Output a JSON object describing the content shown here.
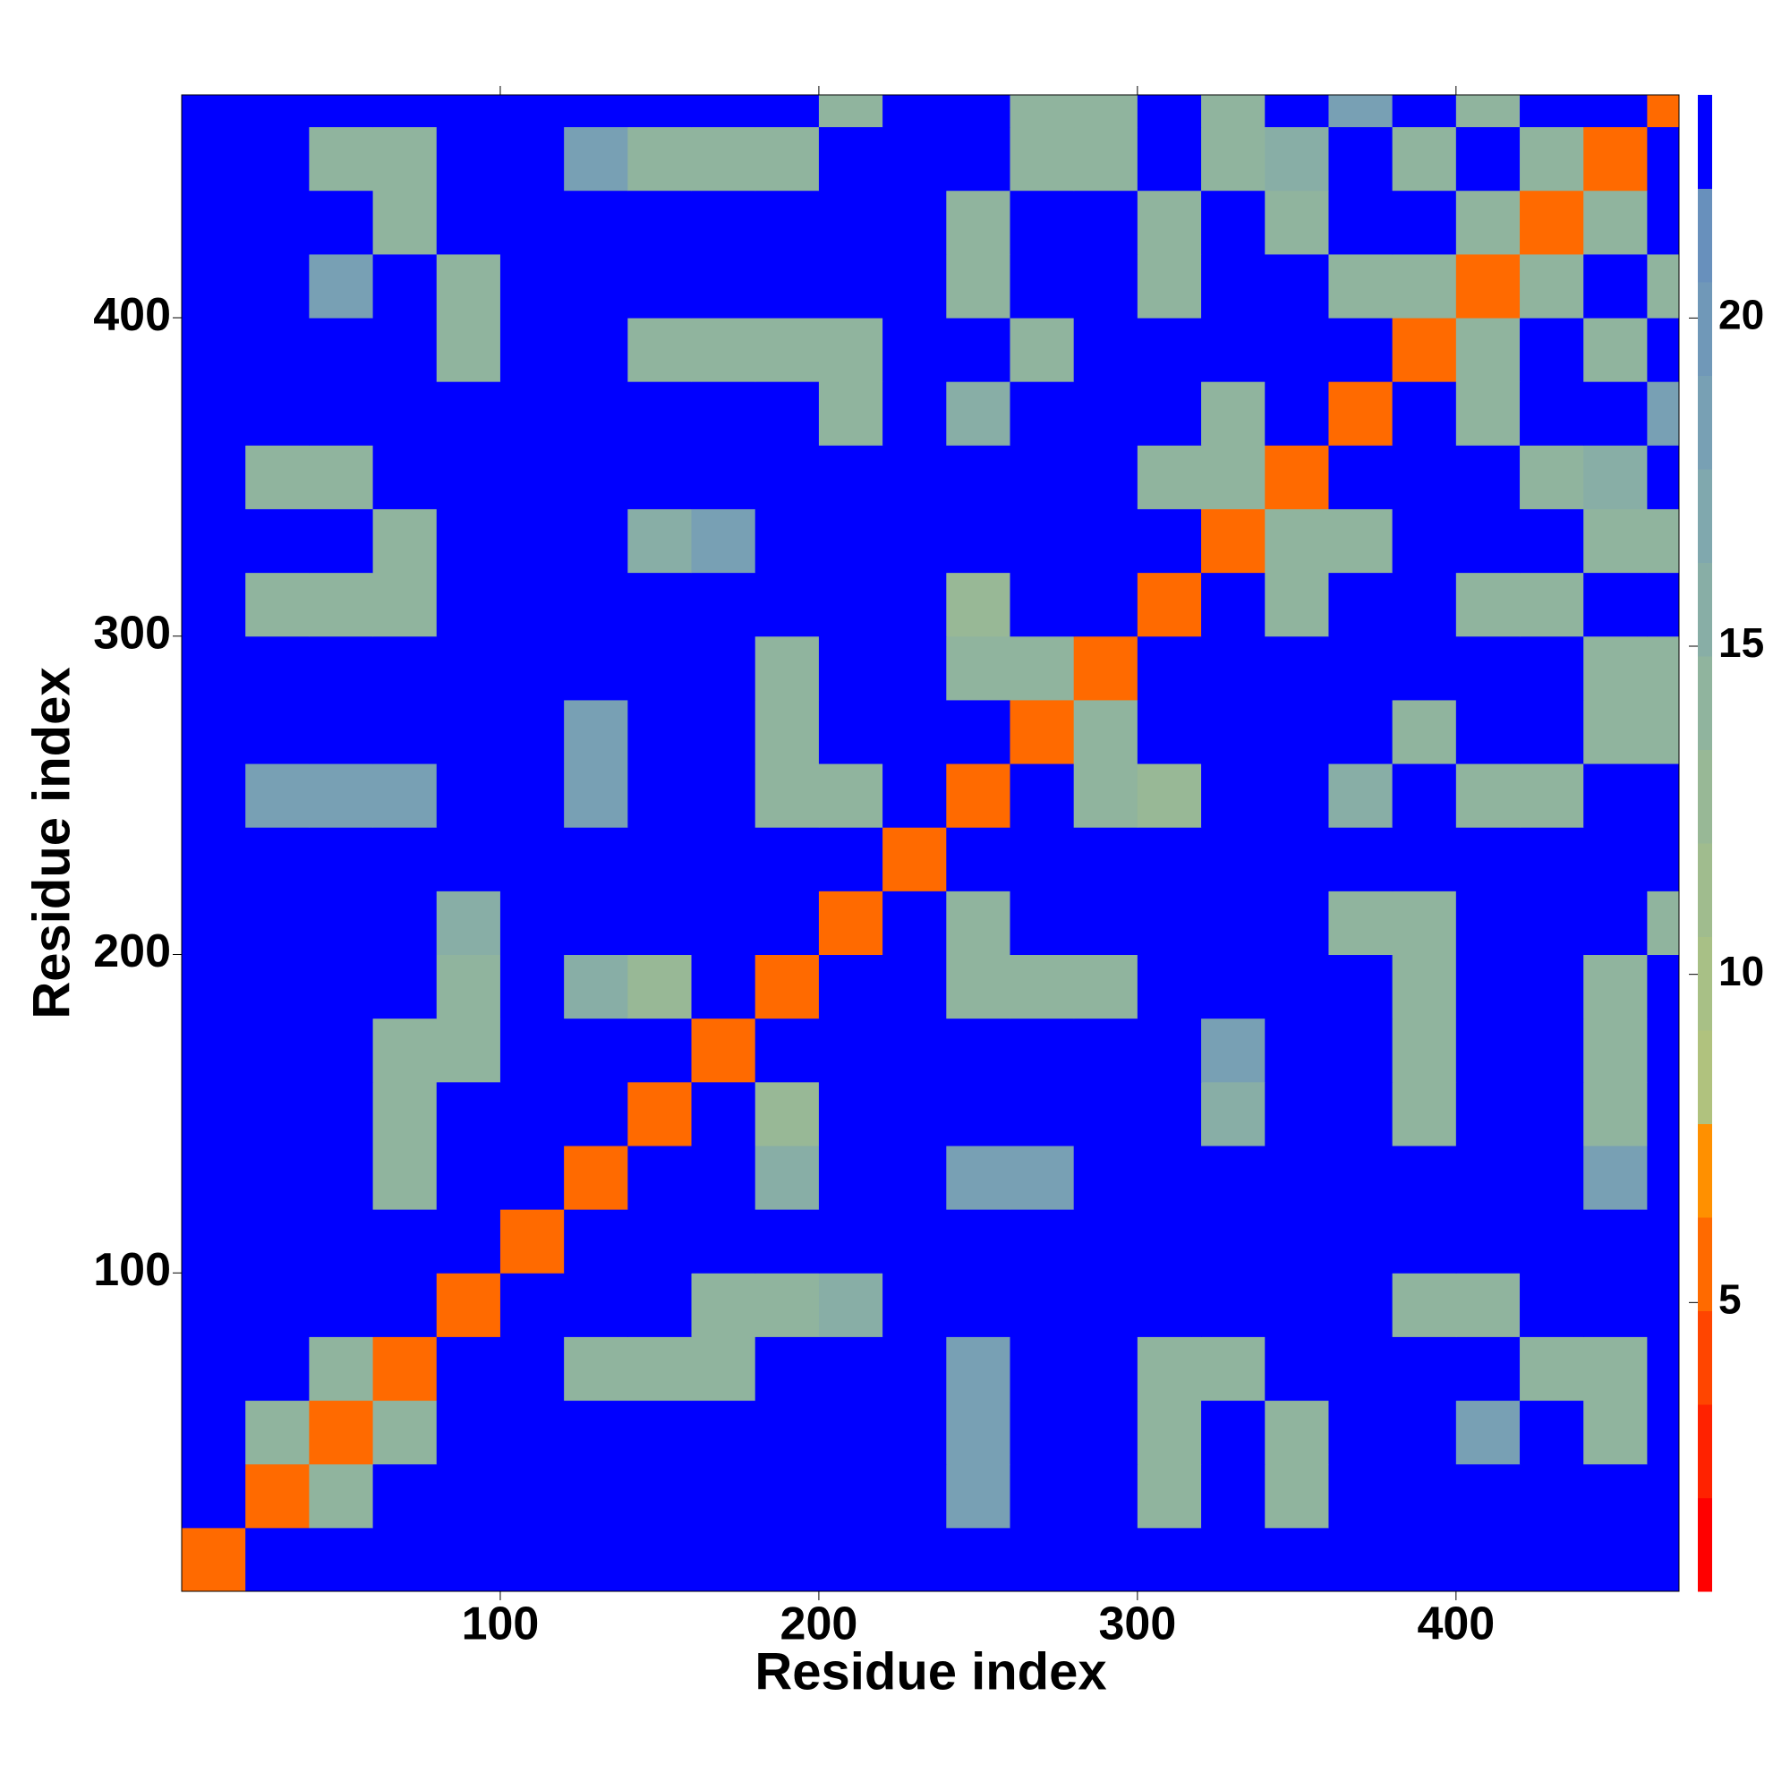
{
  "chart_data": {
    "type": "heatmap",
    "xlabel": "Residue index",
    "ylabel": "Residue index",
    "xlim": [
      0,
      470
    ],
    "ylim": [
      0,
      470
    ],
    "xticks": [
      100,
      200,
      300,
      400
    ],
    "yticks": [
      100,
      200,
      300,
      400
    ],
    "x_bins": [
      0,
      20,
      40,
      60,
      80,
      100,
      120,
      140,
      160,
      180,
      200,
      220,
      240,
      260,
      280,
      300,
      320,
      340,
      360,
      380,
      400,
      420,
      440,
      460,
      470
    ],
    "y_bins": [
      0,
      20,
      40,
      60,
      80,
      100,
      120,
      140,
      160,
      180,
      200,
      220,
      240,
      260,
      280,
      300,
      320,
      340,
      360,
      380,
      400,
      420,
      440,
      460,
      470
    ],
    "z": [
      [
        5,
        23,
        23,
        23,
        23,
        23,
        23,
        23,
        23,
        23,
        23,
        23,
        23,
        23,
        23,
        23,
        23,
        23,
        23,
        23,
        23,
        23,
        23,
        23
      ],
      [
        23,
        5,
        14,
        23,
        23,
        23,
        23,
        23,
        23,
        23,
        23,
        23,
        18,
        23,
        23,
        14,
        23,
        14,
        23,
        23,
        23,
        23,
        23,
        23
      ],
      [
        23,
        14,
        5,
        14,
        23,
        23,
        23,
        23,
        23,
        23,
        23,
        23,
        18,
        23,
        23,
        14,
        23,
        14,
        23,
        23,
        18,
        23,
        14,
        23
      ],
      [
        23,
        23,
        14,
        5,
        23,
        23,
        14,
        14,
        14,
        23,
        23,
        23,
        18,
        23,
        23,
        14,
        14,
        23,
        23,
        23,
        23,
        14,
        14,
        23
      ],
      [
        23,
        23,
        23,
        23,
        5,
        23,
        23,
        23,
        14,
        14,
        16,
        23,
        23,
        23,
        23,
        23,
        23,
        23,
        23,
        14,
        14,
        23,
        23,
        23
      ],
      [
        23,
        23,
        23,
        23,
        23,
        5,
        23,
        23,
        23,
        23,
        23,
        23,
        23,
        23,
        23,
        23,
        23,
        23,
        23,
        23,
        23,
        23,
        23,
        23
      ],
      [
        23,
        23,
        23,
        14,
        23,
        23,
        5,
        23,
        23,
        16,
        23,
        23,
        18,
        18,
        23,
        23,
        23,
        23,
        23,
        23,
        23,
        23,
        18,
        23
      ],
      [
        23,
        23,
        23,
        14,
        23,
        23,
        23,
        5,
        23,
        13,
        23,
        23,
        23,
        23,
        23,
        23,
        16,
        23,
        23,
        14,
        23,
        23,
        14,
        23
      ],
      [
        23,
        23,
        23,
        14,
        14,
        23,
        23,
        23,
        5,
        23,
        23,
        23,
        23,
        23,
        23,
        23,
        18,
        23,
        23,
        14,
        23,
        23,
        14,
        23
      ],
      [
        23,
        23,
        23,
        23,
        14,
        23,
        16,
        13,
        23,
        5,
        23,
        23,
        14,
        14,
        14,
        23,
        23,
        23,
        23,
        14,
        23,
        23,
        14,
        23
      ],
      [
        23,
        23,
        23,
        23,
        16,
        23,
        23,
        23,
        23,
        23,
        5,
        23,
        14,
        23,
        23,
        23,
        23,
        23,
        14,
        14,
        23,
        23,
        23,
        14
      ],
      [
        23,
        23,
        23,
        23,
        23,
        23,
        23,
        23,
        23,
        23,
        23,
        5,
        23,
        23,
        23,
        23,
        23,
        23,
        23,
        23,
        23,
        23,
        23,
        23
      ],
      [
        23,
        18,
        18,
        18,
        23,
        23,
        18,
        23,
        23,
        14,
        14,
        23,
        5,
        23,
        14,
        13,
        23,
        23,
        16,
        23,
        14,
        14,
        23,
        23
      ],
      [
        23,
        23,
        23,
        23,
        23,
        23,
        18,
        23,
        23,
        14,
        23,
        23,
        23,
        5,
        14,
        23,
        23,
        23,
        23,
        14,
        23,
        23,
        14,
        14
      ],
      [
        23,
        23,
        23,
        23,
        23,
        23,
        23,
        23,
        23,
        14,
        23,
        23,
        14,
        14,
        5,
        23,
        23,
        23,
        23,
        23,
        23,
        23,
        14,
        14
      ],
      [
        23,
        14,
        14,
        14,
        23,
        23,
        23,
        23,
        23,
        23,
        23,
        23,
        13,
        23,
        23,
        5,
        23,
        14,
        23,
        23,
        14,
        14,
        23,
        23
      ],
      [
        23,
        23,
        23,
        14,
        23,
        23,
        23,
        16,
        18,
        23,
        23,
        23,
        23,
        23,
        23,
        23,
        5,
        14,
        14,
        23,
        23,
        23,
        14,
        14
      ],
      [
        23,
        14,
        14,
        23,
        23,
        23,
        23,
        23,
        23,
        23,
        23,
        23,
        23,
        23,
        23,
        14,
        14,
        5,
        23,
        23,
        23,
        14,
        16,
        23
      ],
      [
        23,
        23,
        23,
        23,
        23,
        23,
        23,
        23,
        23,
        23,
        14,
        23,
        16,
        23,
        23,
        23,
        14,
        23,
        5,
        23,
        14,
        23,
        23,
        18
      ],
      [
        23,
        23,
        23,
        23,
        14,
        23,
        23,
        14,
        14,
        14,
        14,
        23,
        23,
        14,
        23,
        23,
        23,
        23,
        23,
        5,
        14,
        23,
        14,
        23
      ],
      [
        23,
        23,
        18,
        23,
        14,
        23,
        23,
        23,
        23,
        23,
        23,
        23,
        14,
        23,
        23,
        14,
        23,
        23,
        14,
        14,
        5,
        14,
        23,
        14
      ],
      [
        23,
        23,
        23,
        14,
        23,
        23,
        23,
        23,
        23,
        23,
        23,
        23,
        14,
        23,
        23,
        14,
        23,
        14,
        23,
        23,
        14,
        5,
        14,
        23
      ],
      [
        23,
        23,
        14,
        14,
        23,
        23,
        18,
        14,
        14,
        14,
        23,
        23,
        23,
        14,
        14,
        23,
        14,
        16,
        23,
        14,
        23,
        14,
        5,
        23
      ],
      [
        23,
        23,
        23,
        23,
        23,
        23,
        23,
        23,
        23,
        23,
        14,
        23,
        23,
        14,
        14,
        23,
        14,
        23,
        18,
        23,
        14,
        23,
        23,
        5
      ]
    ],
    "colorbar": {
      "lim": [
        0.6,
        23.4
      ],
      "ticks": [
        5,
        10,
        15,
        20
      ],
      "colors": [
        "#ff0000",
        "#ff2200",
        "#ff4500",
        "#ff6a00",
        "#ff9000",
        "#b0c27e",
        "#a8c086",
        "#a0bc8e",
        "#98b896",
        "#90b49e",
        "#88aea6",
        "#80a8ae",
        "#78a0b4",
        "#7098b8",
        "#6890bc",
        "#0000ff"
      ]
    }
  }
}
